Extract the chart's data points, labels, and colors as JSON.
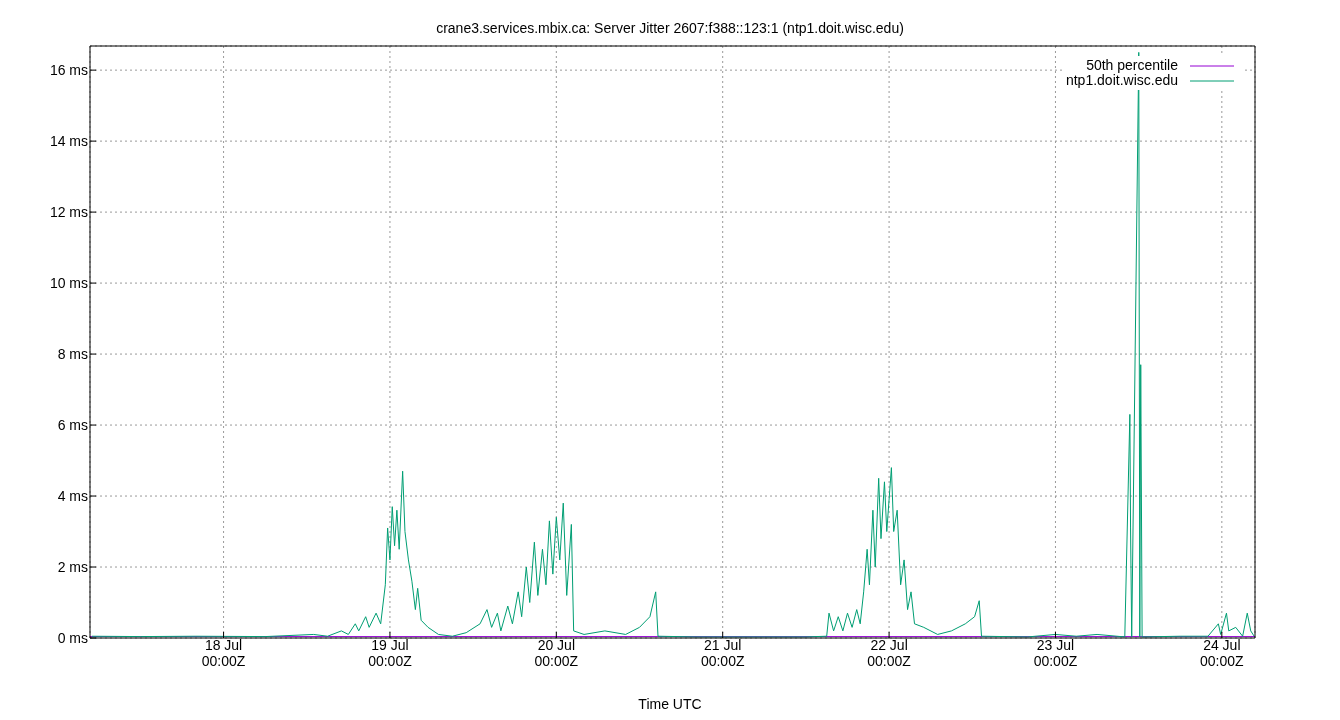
{
  "chart_data": {
    "type": "line",
    "title": "crane3.services.mbix.ca: Server Jitter 2607:f388::123:1 (ntp1.doit.wisc.edu)",
    "xlabel": "Time UTC",
    "xlim": [
      "--07-17T04:44",
      "--07-24T04:47"
    ],
    "xticks": [
      {
        "value": "--07-18T00:00",
        "label": "18 Jul\n00:00Z"
      },
      {
        "value": "--07-19T00:00",
        "label": "19 Jul\n00:00Z"
      },
      {
        "value": "--07-20T00:00",
        "label": "20 Jul\n00:00Z"
      },
      {
        "value": "--07-21T00:00",
        "label": "21 Jul\n00:00Z"
      },
      {
        "value": "--07-22T00:00",
        "label": "22 Jul\n00:00Z"
      },
      {
        "value": "--07-23T00:00",
        "label": "23 Jul\n00:00Z"
      },
      {
        "value": "--07-24T00:00",
        "label": "24 Jul\n00:00Z"
      }
    ],
    "ylim": [
      0,
      16.68
    ],
    "yticks": [
      {
        "value": 0,
        "label": "0 ms"
      },
      {
        "value": 2,
        "label": "2 ms"
      },
      {
        "value": 4,
        "label": "4 ms"
      },
      {
        "value": 6,
        "label": "6 ms"
      },
      {
        "value": 8,
        "label": "8 ms"
      },
      {
        "value": 10,
        "label": "10 ms"
      },
      {
        "value": 12,
        "label": "12 ms"
      },
      {
        "value": 14,
        "label": "14 ms"
      },
      {
        "value": 16,
        "label": "16 ms"
      }
    ],
    "grid": true,
    "legend": "top right",
    "line_style": "solid",
    "marker": "none",
    "series": [
      {
        "name": "50th percentile",
        "color": "#9400d3",
        "x": [
          "--07-17T04:44",
          "--07-24T04:47"
        ],
        "values": [
          0.04,
          0.04
        ]
      },
      {
        "name": "ntp1.doit.wisc.edu",
        "color": "#009e73",
        "x": [
          "--07-17T05:00",
          "--07-17T12:00",
          "--07-17T20:00",
          "--07-18T06:00",
          "--07-18T13:00",
          "--07-18T15:00",
          "--07-18T17:00",
          "--07-18T18:00",
          "--07-18T19:00",
          "--07-18T19:30",
          "--07-18T20:30",
          "--07-18T21:00",
          "--07-18T22:00",
          "--07-18T22:40",
          "--07-18T23:20",
          "--07-18T23:40",
          "--07-19T00:00",
          "--07-19T00:20",
          "--07-19T00:40",
          "--07-19T01:00",
          "--07-19T01:20",
          "--07-19T01:50",
          "--07-19T02:10",
          "--07-19T02:40",
          "--07-19T03:10",
          "--07-19T03:40",
          "--07-19T04:00",
          "--07-19T04:30",
          "--07-19T05:30",
          "--07-19T07:00",
          "--07-19T09:00",
          "--07-19T11:00",
          "--07-19T13:00",
          "--07-19T14:00",
          "--07-19T14:40",
          "--07-19T15:30",
          "--07-19T16:00",
          "--07-19T17:00",
          "--07-19T17:40",
          "--07-19T18:30",
          "--07-19T19:00",
          "--07-19T19:40",
          "--07-19T20:10",
          "--07-19T20:50",
          "--07-19T21:20",
          "--07-19T22:00",
          "--07-19T22:30",
          "--07-19T23:00",
          "--07-19T23:30",
          "--07-20T00:00",
          "--07-20T00:30",
          "--07-20T01:00",
          "--07-20T01:30",
          "--07-20T02:10",
          "--07-20T02:30",
          "--07-20T04:00",
          "--07-20T07:00",
          "--07-20T10:00",
          "--07-20T12:00",
          "--07-20T13:30",
          "--07-20T14:20",
          "--07-20T14:40",
          "--07-20T20:00",
          "--07-21T06:00",
          "--07-21T12:00",
          "--07-21T15:00",
          "--07-21T15:20",
          "--07-21T16:00",
          "--07-21T16:40",
          "--07-21T17:20",
          "--07-21T18:00",
          "--07-21T18:40",
          "--07-21T19:20",
          "--07-21T19:50",
          "--07-21T20:20",
          "--07-21T20:50",
          "--07-21T21:10",
          "--07-21T21:40",
          "--07-21T22:00",
          "--07-21T22:30",
          "--07-21T22:50",
          "--07-21T23:20",
          "--07-21T23:40",
          "--07-22T00:20",
          "--07-22T00:40",
          "--07-22T01:10",
          "--07-22T01:40",
          "--07-22T02:10",
          "--07-22T02:40",
          "--07-22T03:10",
          "--07-22T03:40",
          "--07-22T05:00",
          "--07-22T07:00",
          "--07-22T09:00",
          "--07-22T11:00",
          "--07-22T12:20",
          "--07-22T13:00",
          "--07-22T13:20",
          "--07-22T20:00",
          "--07-23T00:00",
          "--07-23T03:00",
          "--07-23T06:00",
          "--07-23T10:00",
          "--07-23T10:44",
          "--07-23T10:50",
          "--07-23T11:00",
          "--07-23T12:01",
          "--07-23T12:10",
          "--07-23T12:18",
          "--07-23T12:30",
          "--07-23T18:00",
          "--07-23T22:00",
          "--07-23T23:30",
          "--07-23T23:50",
          "--07-24T00:40",
          "--07-24T01:00",
          "--07-24T02:00",
          "--07-24T03:00",
          "--07-24T03:40",
          "--07-24T04:10",
          "--07-24T04:40"
        ],
        "values": [
          0.05,
          0.04,
          0.05,
          0.04,
          0.1,
          0.05,
          0.2,
          0.1,
          0.4,
          0.2,
          0.6,
          0.3,
          0.7,
          0.4,
          1.5,
          3.1,
          2.2,
          3.7,
          2.6,
          3.6,
          2.5,
          4.7,
          3.0,
          2.2,
          1.6,
          0.8,
          1.4,
          0.5,
          0.3,
          0.1,
          0.05,
          0.15,
          0.4,
          0.8,
          0.3,
          0.7,
          0.2,
          0.9,
          0.4,
          1.3,
          0.6,
          2.0,
          1.0,
          2.7,
          1.2,
          2.5,
          1.5,
          3.3,
          1.8,
          3.4,
          2.2,
          3.8,
          1.2,
          3.2,
          0.2,
          0.1,
          0.2,
          0.1,
          0.3,
          0.6,
          1.3,
          0.05,
          0.03,
          0.03,
          0.03,
          0.05,
          0.7,
          0.2,
          0.6,
          0.2,
          0.7,
          0.3,
          0.8,
          0.4,
          1.3,
          2.5,
          1.5,
          3.6,
          2.0,
          4.5,
          2.8,
          4.4,
          3.0,
          4.8,
          3.0,
          3.6,
          1.5,
          2.2,
          0.8,
          1.3,
          0.4,
          0.3,
          0.1,
          0.2,
          0.4,
          0.6,
          1.05,
          0.05,
          0.03,
          0.1,
          0.05,
          0.1,
          0.03,
          6.3,
          3.1,
          0.03,
          16.5,
          0.03,
          7.7,
          0.03,
          0.05,
          0.05,
          0.4,
          0.1,
          0.7,
          0.2,
          0.3,
          0.05,
          0.7,
          0.2,
          0.05
        ]
      }
    ]
  }
}
